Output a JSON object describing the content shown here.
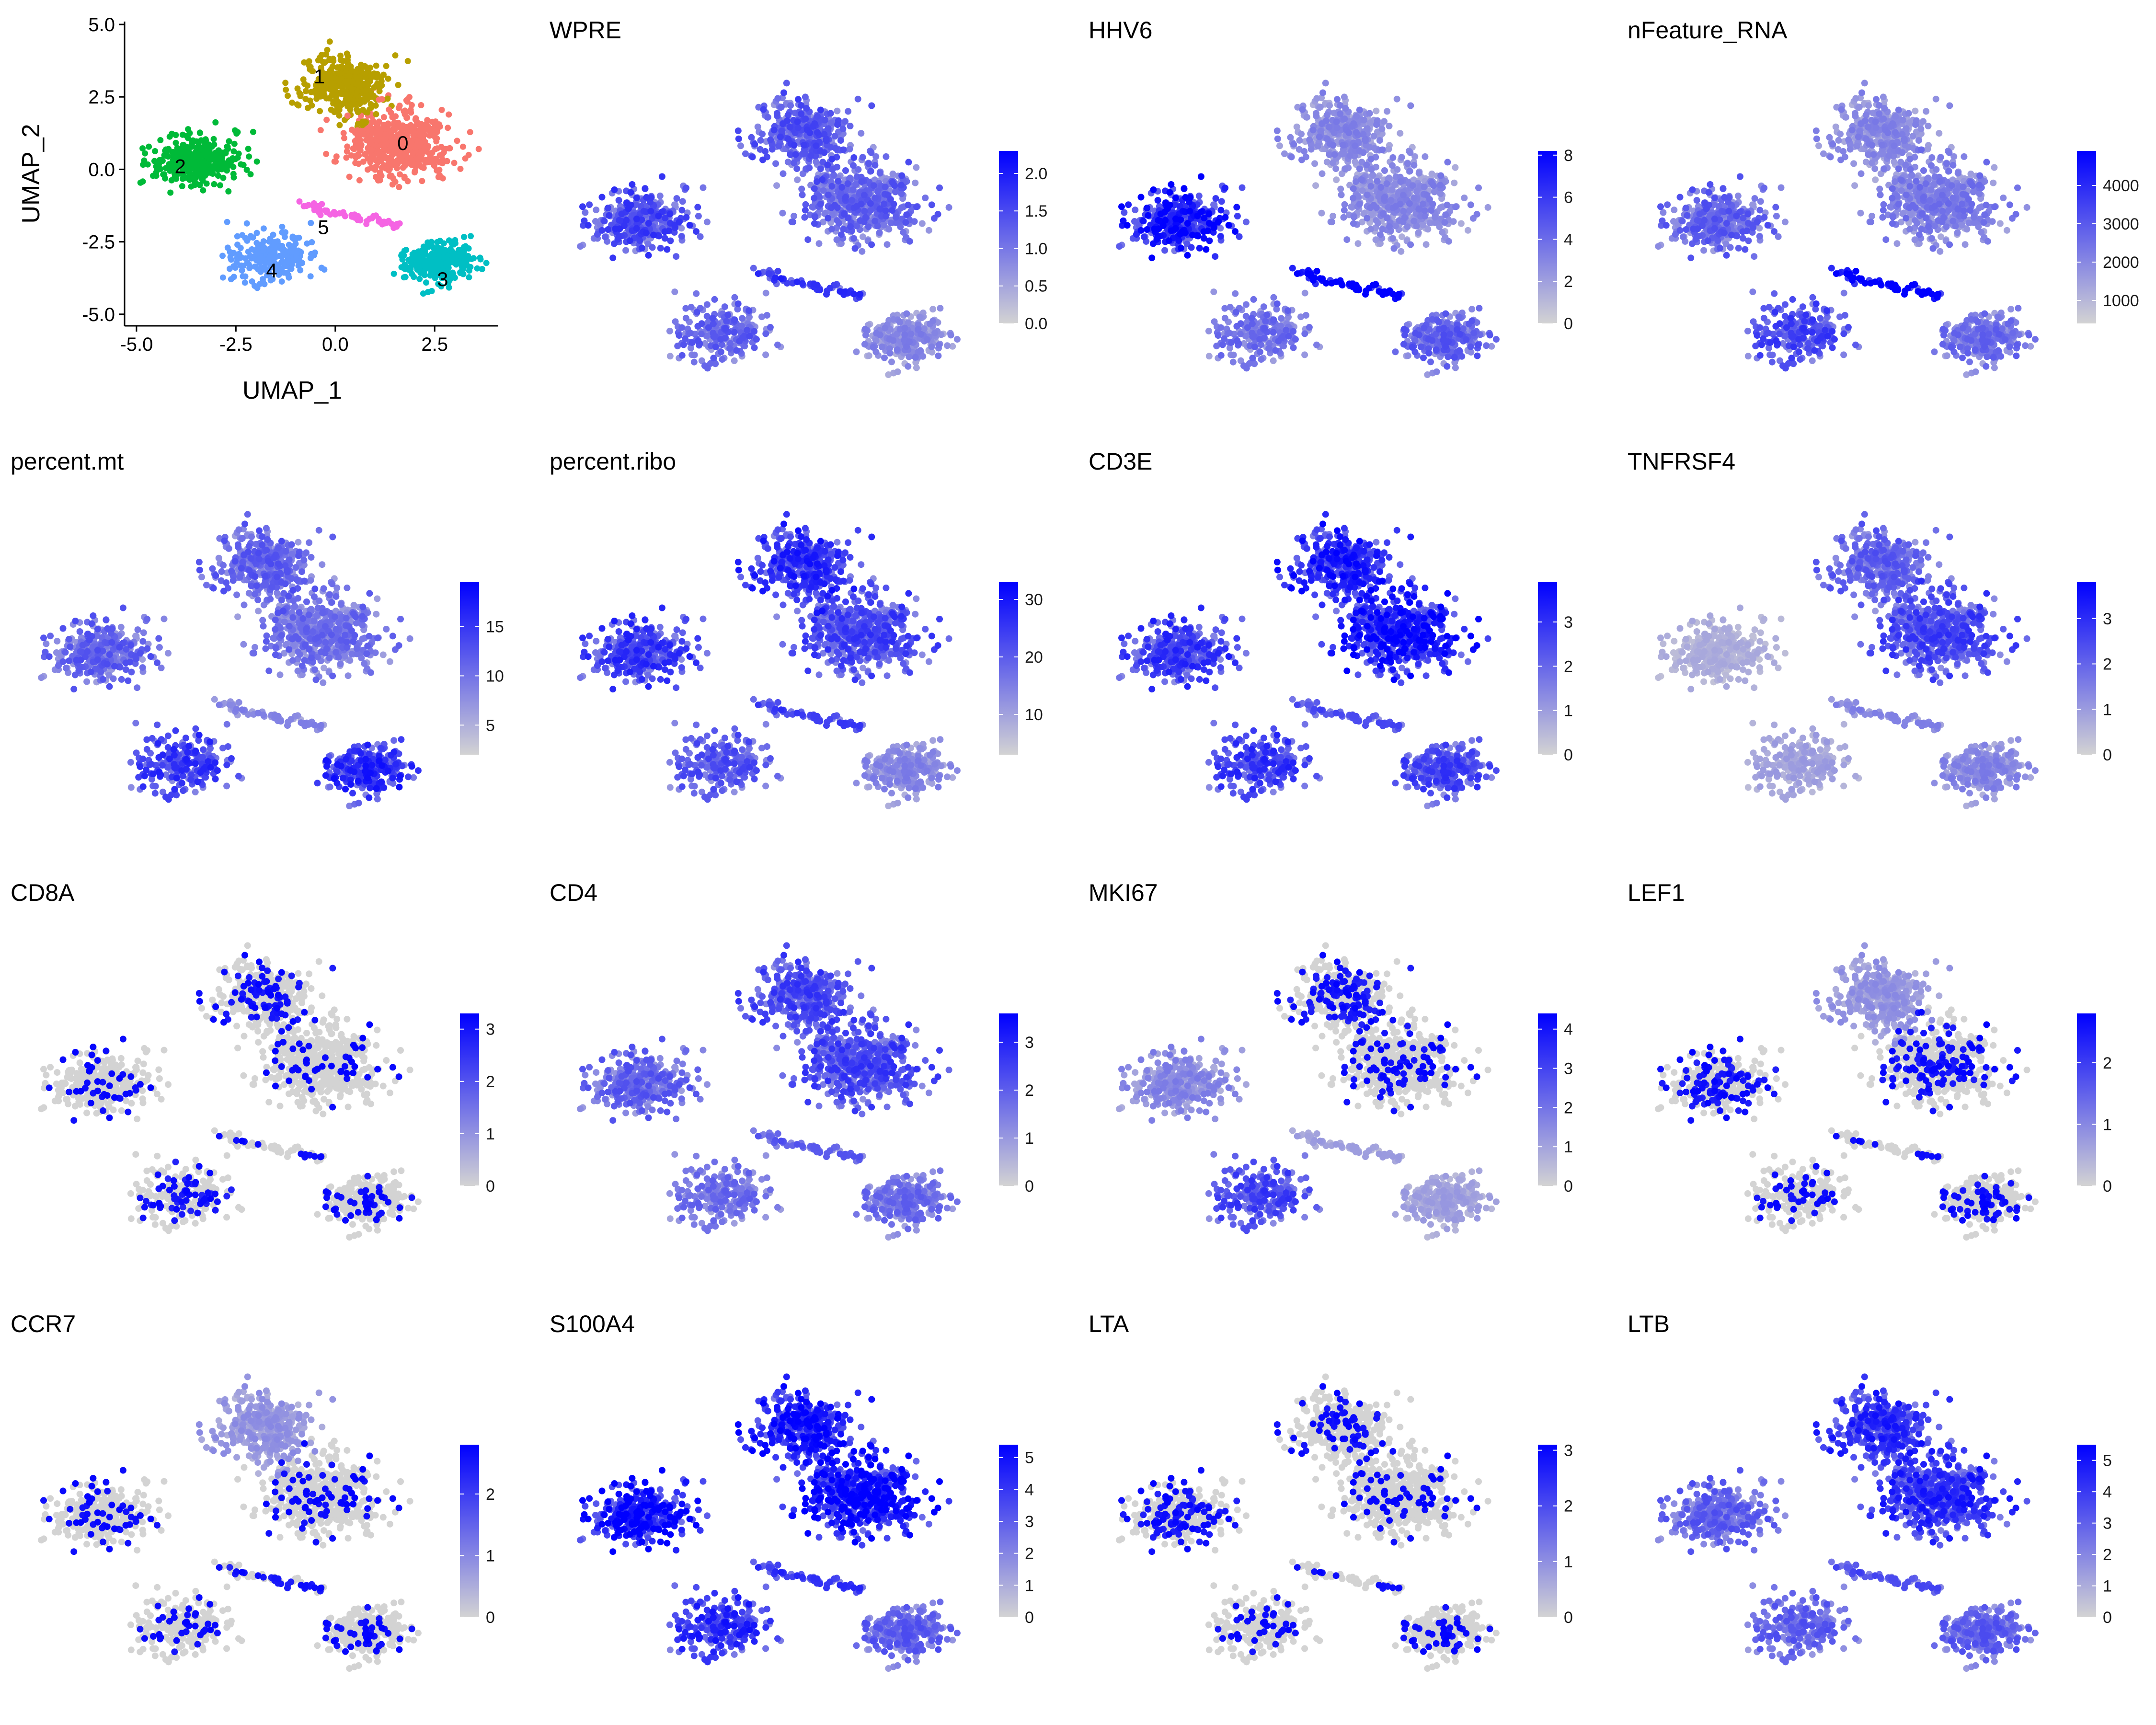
{
  "chart_data": [
    {
      "type": "scatter",
      "title": "",
      "xlabel": "UMAP_1",
      "ylabel": "UMAP_2",
      "xlim": [
        -5.3,
        4.1
      ],
      "ylim": [
        -5.4,
        5.1
      ],
      "xticks": [
        -5.0,
        -2.5,
        0.0,
        2.5
      ],
      "yticks": [
        -5.0,
        -2.5,
        0.0,
        2.5,
        5.0
      ],
      "xtick_labels": [
        "-5.0",
        "-2.5",
        "0.0",
        "2.5"
      ],
      "ytick_labels": [
        "-5.0",
        "-2.5",
        "0.0",
        "2.5",
        "5.0"
      ],
      "legend": "none",
      "clusters": [
        {
          "name": "0",
          "color": "#F8766D",
          "center": [
            1.6,
            0.9
          ],
          "spread": [
            1.15,
            1.0
          ],
          "n": 520
        },
        {
          "name": "1",
          "color": "#B79F00",
          "center": [
            0.2,
            2.9
          ],
          "spread": [
            0.95,
            0.95
          ],
          "n": 360
        },
        {
          "name": "2",
          "color": "#00BA38",
          "center": [
            -3.5,
            0.3
          ],
          "spread": [
            1.05,
            0.75
          ],
          "n": 330
        },
        {
          "name": "3",
          "color": "#00BFC4",
          "center": [
            2.6,
            -3.2
          ],
          "spread": [
            0.8,
            0.65
          ],
          "n": 280
        },
        {
          "name": "4",
          "color": "#619CFF",
          "center": [
            -1.6,
            -3.0
          ],
          "spread": [
            1.0,
            0.75
          ],
          "n": 230
        },
        {
          "name": "5",
          "color": "#F564E3",
          "center": [
            0.4,
            -1.6
          ],
          "spread": [
            0.8,
            0.18
          ],
          "n": 60
        }
      ],
      "cluster_labels": [
        {
          "text": "0",
          "x": 1.7,
          "y": 0.9
        },
        {
          "text": "1",
          "x": -0.4,
          "y": 3.2
        },
        {
          "text": "2",
          "x": -3.9,
          "y": 0.1
        },
        {
          "text": "3",
          "x": 2.7,
          "y": -3.8
        },
        {
          "text": "4",
          "x": -1.6,
          "y": -3.5
        },
        {
          "text": "5",
          "x": -0.3,
          "y": -2.0
        }
      ]
    },
    {
      "type": "scatter",
      "title": "WPRE",
      "color_low": "#D3D3D3",
      "color_high": "#0000FF",
      "value_range": [
        0.0,
        2.3
      ],
      "colorbar_ticks": [
        0.0,
        0.5,
        1.0,
        1.5,
        2.0
      ],
      "colorbar_labels": [
        "0.0",
        "0.5",
        "1.0",
        "1.5",
        "2.0"
      ],
      "mean_level_by_cluster": [
        0.45,
        0.5,
        0.55,
        0.3,
        0.45,
        0.6
      ]
    },
    {
      "type": "scatter",
      "title": "HHV6",
      "color_low": "#D3D3D3",
      "color_high": "#0000FF",
      "value_range": [
        0,
        8.2
      ],
      "colorbar_ticks": [
        0,
        2,
        4,
        6,
        8
      ],
      "colorbar_labels": [
        "0",
        "2",
        "4",
        "6",
        "8"
      ],
      "mean_level_by_cluster": [
        0.3,
        0.3,
        0.75,
        0.45,
        0.4,
        0.95
      ]
    },
    {
      "type": "scatter",
      "title": "nFeature_RNA",
      "color_low": "#D3D3D3",
      "color_high": "#0000FF",
      "value_range": [
        400,
        4900
      ],
      "colorbar_ticks": [
        1000,
        2000,
        3000,
        4000
      ],
      "colorbar_labels": [
        "1000",
        "2000",
        "3000",
        "4000"
      ],
      "mean_level_by_cluster": [
        0.35,
        0.3,
        0.45,
        0.4,
        0.55,
        0.9
      ]
    },
    {
      "type": "scatter",
      "title": "percent.mt",
      "color_low": "#D3D3D3",
      "color_high": "#0000FF",
      "value_range": [
        2,
        19.5
      ],
      "colorbar_ticks": [
        5,
        10,
        15
      ],
      "colorbar_labels": [
        "5",
        "10",
        "15"
      ],
      "mean_level_by_cluster": [
        0.4,
        0.45,
        0.45,
        0.65,
        0.6,
        0.3
      ]
    },
    {
      "type": "scatter",
      "title": "percent.ribo",
      "color_low": "#D3D3D3",
      "color_high": "#0000FF",
      "value_range": [
        3,
        33
      ],
      "colorbar_ticks": [
        10,
        20,
        30
      ],
      "colorbar_labels": [
        "10",
        "20",
        "30"
      ],
      "mean_level_by_cluster": [
        0.55,
        0.65,
        0.6,
        0.3,
        0.5,
        0.55
      ]
    },
    {
      "type": "scatter",
      "title": "CD3E",
      "color_low": "#D3D3D3",
      "color_high": "#0000FF",
      "value_range": [
        0,
        3.9
      ],
      "colorbar_ticks": [
        0,
        1,
        2,
        3
      ],
      "colorbar_labels": [
        "0",
        "1",
        "2",
        "3"
      ],
      "mean_level_by_cluster": [
        0.75,
        0.7,
        0.6,
        0.55,
        0.6,
        0.5
      ]
    },
    {
      "type": "scatter",
      "title": "TNFRSF4",
      "color_low": "#D3D3D3",
      "color_high": "#0000FF",
      "value_range": [
        0,
        3.8
      ],
      "colorbar_ticks": [
        0,
        1,
        2,
        3
      ],
      "colorbar_labels": [
        "0",
        "1",
        "2",
        "3"
      ],
      "mean_level_by_cluster": [
        0.55,
        0.45,
        0.15,
        0.3,
        0.2,
        0.3
      ]
    },
    {
      "type": "scatter",
      "title": "CD8A",
      "color_low": "#D3D3D3",
      "color_high": "#0000FF",
      "value_range": [
        0,
        3.3
      ],
      "colorbar_ticks": [
        0,
        1,
        2,
        3
      ],
      "colorbar_labels": [
        "0",
        "1",
        "2",
        "3"
      ],
      "mean_level_by_cluster": [
        0.03,
        0.08,
        0.04,
        0.05,
        0.1,
        0.05
      ]
    },
    {
      "type": "scatter",
      "title": "CD4",
      "color_low": "#D3D3D3",
      "color_high": "#0000FF",
      "value_range": [
        0,
        3.6
      ],
      "colorbar_ticks": [
        0,
        1,
        2,
        3
      ],
      "colorbar_labels": [
        "0",
        "1",
        "2",
        "3"
      ],
      "mean_level_by_cluster": [
        0.55,
        0.55,
        0.45,
        0.4,
        0.4,
        0.45
      ]
    },
    {
      "type": "scatter",
      "title": "MKI67",
      "color_low": "#D3D3D3",
      "color_high": "#0000FF",
      "value_range": [
        0,
        4.4
      ],
      "colorbar_ticks": [
        0,
        1,
        2,
        3,
        4
      ],
      "colorbar_labels": [
        "0",
        "1",
        "2",
        "3",
        "4"
      ],
      "mean_level_by_cluster": [
        0.06,
        0.1,
        0.3,
        0.2,
        0.55,
        0.2
      ]
    },
    {
      "type": "scatter",
      "title": "LEF1",
      "color_low": "#D3D3D3",
      "color_high": "#0000FF",
      "value_range": [
        0,
        2.8
      ],
      "colorbar_ticks": [
        0,
        1,
        2
      ],
      "colorbar_labels": [
        "0",
        "1",
        "2"
      ],
      "mean_level_by_cluster": [
        0.08,
        0.25,
        0.1,
        0.06,
        0.06,
        0.05
      ]
    },
    {
      "type": "scatter",
      "title": "CCR7",
      "color_low": "#D3D3D3",
      "color_high": "#0000FF",
      "value_range": [
        0,
        2.8
      ],
      "colorbar_ticks": [
        0,
        1,
        2
      ],
      "colorbar_labels": [
        "0",
        "1",
        "2"
      ],
      "mean_level_by_cluster": [
        0.05,
        0.25,
        0.05,
        0.05,
        0.05,
        0.1
      ]
    },
    {
      "type": "scatter",
      "title": "S100A4",
      "color_low": "#D3D3D3",
      "color_high": "#0000FF",
      "value_range": [
        0,
        5.4
      ],
      "colorbar_ticks": [
        0,
        1,
        2,
        3,
        4,
        5
      ],
      "colorbar_labels": [
        "0",
        "1",
        "2",
        "3",
        "4",
        "5"
      ],
      "mean_level_by_cluster": [
        0.8,
        0.75,
        0.8,
        0.45,
        0.65,
        0.6
      ]
    },
    {
      "type": "scatter",
      "title": "LTA",
      "color_low": "#D3D3D3",
      "color_high": "#0000FF",
      "value_range": [
        0,
        3.1
      ],
      "colorbar_ticks": [
        0,
        1,
        2,
        3
      ],
      "colorbar_labels": [
        "0",
        "1",
        "2",
        "3"
      ],
      "mean_level_by_cluster": [
        0.04,
        0.06,
        0.1,
        0.05,
        0.05,
        0.05
      ]
    },
    {
      "type": "scatter",
      "title": "LTB",
      "color_low": "#D3D3D3",
      "color_high": "#0000FF",
      "value_range": [
        0,
        5.5
      ],
      "colorbar_ticks": [
        0,
        1,
        2,
        3,
        4,
        5
      ],
      "colorbar_labels": [
        "0",
        "1",
        "2",
        "3",
        "4",
        "5"
      ],
      "mean_level_by_cluster": [
        0.65,
        0.65,
        0.45,
        0.45,
        0.45,
        0.5
      ]
    }
  ]
}
